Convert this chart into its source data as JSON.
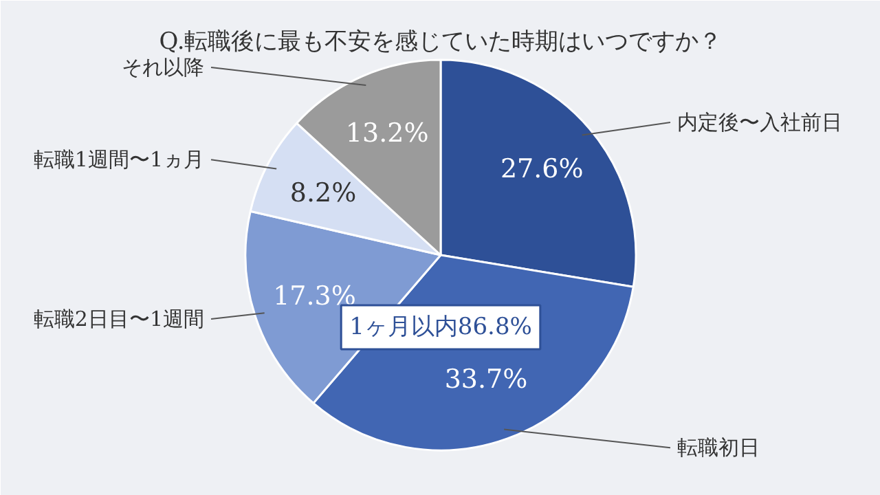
{
  "chart_data": {
    "type": "pie",
    "title": "Q.転職後に最も不安を感じていた時期はいつですか？",
    "categories": [
      "内定後〜入社前日",
      "転職初日",
      "転職2日目〜1週間",
      "転職1週間〜1ヵ月",
      "それ以降"
    ],
    "values": [
      27.6,
      33.7,
      17.3,
      8.2,
      13.2
    ],
    "colors": [
      "#2e5097",
      "#4166b3",
      "#7f9bd3",
      "#d5dff3",
      "#9b9b9b"
    ],
    "value_labels": [
      "27.6%",
      "33.7%",
      "17.3%",
      "8.2%",
      "13.2%"
    ],
    "annotations": [
      "1ヶ月以内86.8%"
    ]
  }
}
